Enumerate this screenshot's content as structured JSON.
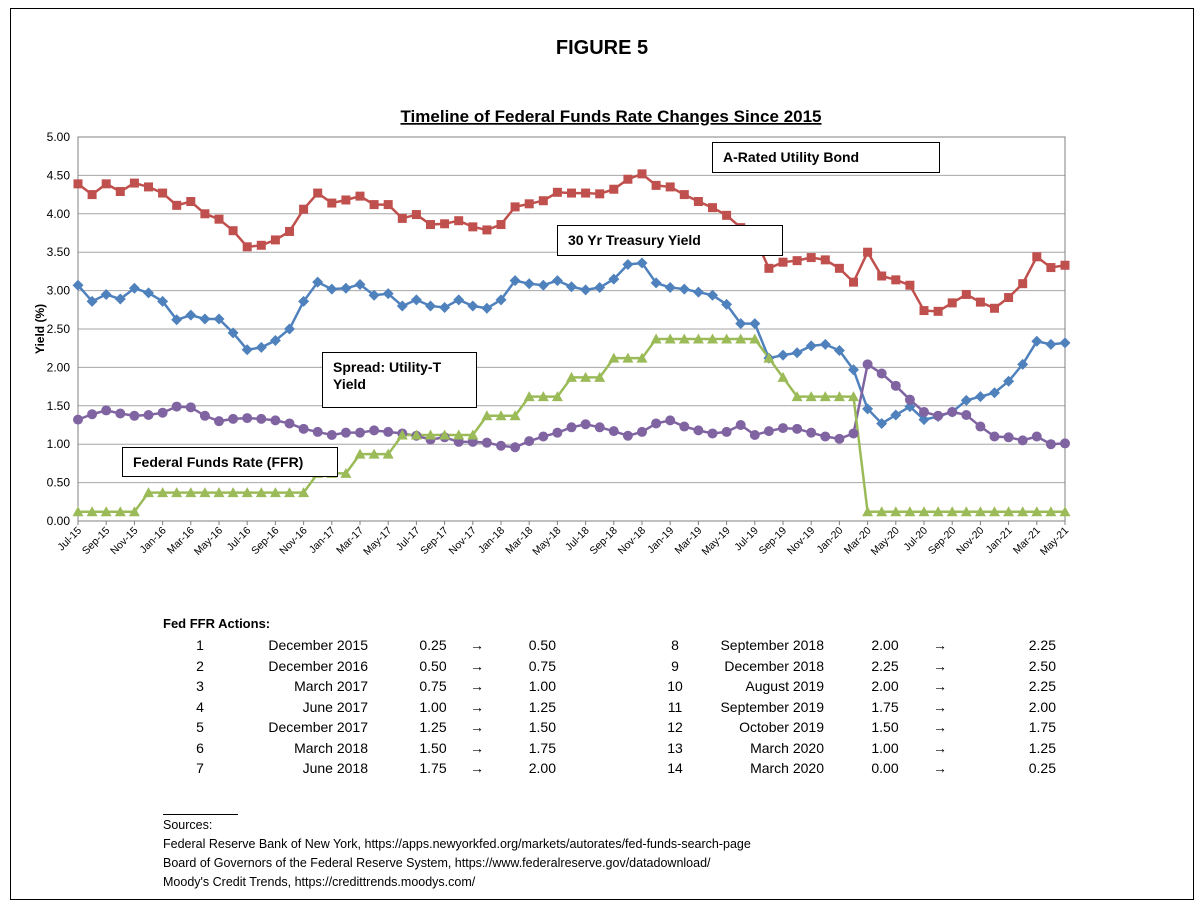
{
  "figure_label": "FIGURE 5",
  "chart_data": {
    "type": "line",
    "title": "Timeline of Federal Funds Rate Changes Since 2015",
    "y_label": "Yield (%)",
    "categories": [
      "Jul-15",
      null,
      "Sep-15",
      null,
      "Nov-15",
      null,
      "Jan-16",
      null,
      "Mar-16",
      null,
      "May-16",
      null,
      "Jul-16",
      null,
      "Sep-16",
      null,
      "Nov-16",
      null,
      "Jan-17",
      null,
      "Mar-17",
      null,
      "May-17",
      null,
      "Jul-17",
      null,
      "Sep-17",
      null,
      "Nov-17",
      null,
      "Jan-18",
      null,
      "Mar-18",
      null,
      "May-18",
      null,
      "Jul-18",
      null,
      "Sep-18",
      null,
      "Nov-18",
      null,
      "Jan-19",
      null,
      "Mar-19",
      null,
      "May-19",
      null,
      "Jul-19",
      null,
      "Sep-19",
      null,
      "Nov-19",
      null,
      "Jan-20",
      null,
      "Mar-20",
      null,
      "May-20",
      null,
      "Jul-20",
      null,
      "Sep-20",
      null,
      "Nov-20",
      null,
      "Jan-21",
      null,
      "Mar-21",
      null,
      "May-21"
    ],
    "ylim": [
      0,
      5
    ],
    "yticks": [
      {
        "value": 0,
        "label": "0.00"
      },
      {
        "value": 0.5,
        "label": "0.50"
      },
      {
        "value": 1,
        "label": "1.00"
      },
      {
        "value": 1.5,
        "label": "1.50"
      },
      {
        "value": 2,
        "label": "2.00"
      },
      {
        "value": 2.5,
        "label": "2.50"
      },
      {
        "value": 3,
        "label": "3.00"
      },
      {
        "value": 3.5,
        "label": "3.50"
      },
      {
        "value": 4,
        "label": "4.00"
      },
      {
        "value": 4.5,
        "label": "4.50"
      },
      {
        "value": 5,
        "label": "5.00"
      }
    ],
    "grid": true,
    "series": [
      {
        "name": "A-Rated Utility Bond",
        "color": "#c0504d",
        "marker": "square",
        "values": [
          4.39,
          4.25,
          4.39,
          4.29,
          4.4,
          4.35,
          4.27,
          4.11,
          4.16,
          4.0,
          3.93,
          3.78,
          3.57,
          3.59,
          3.66,
          3.77,
          4.06,
          4.27,
          4.14,
          4.18,
          4.23,
          4.12,
          4.12,
          3.94,
          3.99,
          3.86,
          3.87,
          3.91,
          3.83,
          3.79,
          3.86,
          4.09,
          4.13,
          4.17,
          4.28,
          4.27,
          4.27,
          4.26,
          4.32,
          4.45,
          4.52,
          4.37,
          4.35,
          4.25,
          4.16,
          4.08,
          3.98,
          3.82,
          3.69,
          3.29,
          3.37,
          3.39,
          3.43,
          3.4,
          3.29,
          3.11,
          3.5,
          3.19,
          3.14,
          3.07,
          2.74,
          2.73,
          2.84,
          2.95,
          2.85,
          2.77,
          2.91,
          3.09,
          3.44,
          3.3,
          3.33
        ]
      },
      {
        "name": "30 Yr Treasury Yield",
        "color": "#4f81bd",
        "marker": "diamond",
        "values": [
          3.07,
          2.86,
          2.95,
          2.89,
          3.03,
          2.97,
          2.86,
          2.62,
          2.68,
          2.63,
          2.63,
          2.45,
          2.23,
          2.26,
          2.35,
          2.5,
          2.86,
          3.11,
          3.02,
          3.03,
          3.08,
          2.94,
          2.96,
          2.8,
          2.88,
          2.8,
          2.78,
          2.88,
          2.8,
          2.77,
          2.88,
          3.13,
          3.09,
          3.07,
          3.13,
          3.05,
          3.01,
          3.04,
          3.15,
          3.34,
          3.36,
          3.1,
          3.04,
          3.02,
          2.98,
          2.94,
          2.82,
          2.57,
          2.57,
          2.12,
          2.16,
          2.19,
          2.28,
          2.3,
          2.22,
          1.97,
          1.46,
          1.27,
          1.38,
          1.49,
          1.32,
          1.36,
          1.42,
          1.57,
          1.62,
          1.67,
          1.82,
          2.04,
          2.34,
          2.3,
          2.32
        ]
      },
      {
        "name": "Spread: Utility-T Yield",
        "color": "#8064a2",
        "marker": "circle",
        "values": [
          1.32,
          1.39,
          1.44,
          1.4,
          1.37,
          1.38,
          1.41,
          1.49,
          1.48,
          1.37,
          1.3,
          1.33,
          1.34,
          1.33,
          1.31,
          1.27,
          1.2,
          1.16,
          1.12,
          1.15,
          1.15,
          1.18,
          1.16,
          1.14,
          1.11,
          1.06,
          1.09,
          1.03,
          1.03,
          1.02,
          0.98,
          0.96,
          1.04,
          1.1,
          1.15,
          1.22,
          1.26,
          1.22,
          1.17,
          1.11,
          1.16,
          1.27,
          1.31,
          1.23,
          1.18,
          1.14,
          1.16,
          1.25,
          1.12,
          1.17,
          1.21,
          1.2,
          1.15,
          1.1,
          1.07,
          1.14,
          2.04,
          1.92,
          1.76,
          1.58,
          1.42,
          1.37,
          1.42,
          1.38,
          1.23,
          1.1,
          1.09,
          1.05,
          1.1,
          1.0,
          1.01
        ]
      },
      {
        "name": "Federal Funds Rate (FFR)",
        "color": "#9bbb59",
        "marker": "triangle",
        "values": [
          0.12,
          0.12,
          0.12,
          0.12,
          0.12,
          0.37,
          0.37,
          0.37,
          0.37,
          0.37,
          0.37,
          0.37,
          0.37,
          0.37,
          0.37,
          0.37,
          0.37,
          0.62,
          0.62,
          0.62,
          0.87,
          0.87,
          0.87,
          1.12,
          1.12,
          1.12,
          1.12,
          1.12,
          1.12,
          1.37,
          1.37,
          1.37,
          1.62,
          1.62,
          1.62,
          1.87,
          1.87,
          1.87,
          2.12,
          2.12,
          2.12,
          2.37,
          2.37,
          2.37,
          2.37,
          2.37,
          2.37,
          2.37,
          2.37,
          2.12,
          1.87,
          1.62,
          1.62,
          1.62,
          1.62,
          1.62,
          0.12,
          0.12,
          0.12,
          0.12,
          0.12,
          0.12,
          0.12,
          0.12,
          0.12,
          0.12,
          0.12,
          0.12,
          0.12,
          0.12,
          0.12
        ]
      }
    ]
  },
  "actions": {
    "title": "Fed FFR Actions:",
    "rows": [
      [
        "1",
        "December 2015",
        "0.25",
        "→",
        "0.50"
      ],
      [
        "2",
        "December 2016",
        "0.50",
        "→",
        "0.75"
      ],
      [
        "3",
        "March 2017",
        "0.75",
        "→",
        "1.00"
      ],
      [
        "4",
        "June 2017",
        "1.00",
        "→",
        "1.25"
      ],
      [
        "5",
        "December 2017",
        "1.25",
        "→",
        "1.50"
      ],
      [
        "6",
        "March 2018",
        "1.50",
        "→",
        "1.75"
      ],
      [
        "7",
        "June 2018",
        "1.75",
        "→",
        "2.00"
      ],
      [
        "8",
        "September 2018",
        "2.00",
        "→",
        "2.25"
      ],
      [
        "9",
        "December 2018",
        "2.25",
        "→",
        "2.50"
      ],
      [
        "10",
        "August 2019",
        "2.00",
        "→",
        "2.25"
      ],
      [
        "11",
        "September 2019",
        "1.75",
        "→",
        "2.00"
      ],
      [
        "12",
        "October 2019",
        "1.50",
        "→",
        "1.75"
      ],
      [
        "13",
        "March 2020",
        "1.00",
        "→",
        "1.25"
      ],
      [
        "14",
        "March 2020",
        "0.00",
        "→",
        "0.25"
      ]
    ]
  },
  "sources": {
    "title": "Sources:",
    "lines": [
      "Federal Reserve Bank of New York, https://apps.newyorkfed.org/markets/autorates/fed-funds-search-page",
      "Board of Governors of the Federal Reserve System, https://www.federalreserve.gov/datadownload/",
      "Moody's Credit Trends, https://credittrends.moodys.com/"
    ]
  }
}
